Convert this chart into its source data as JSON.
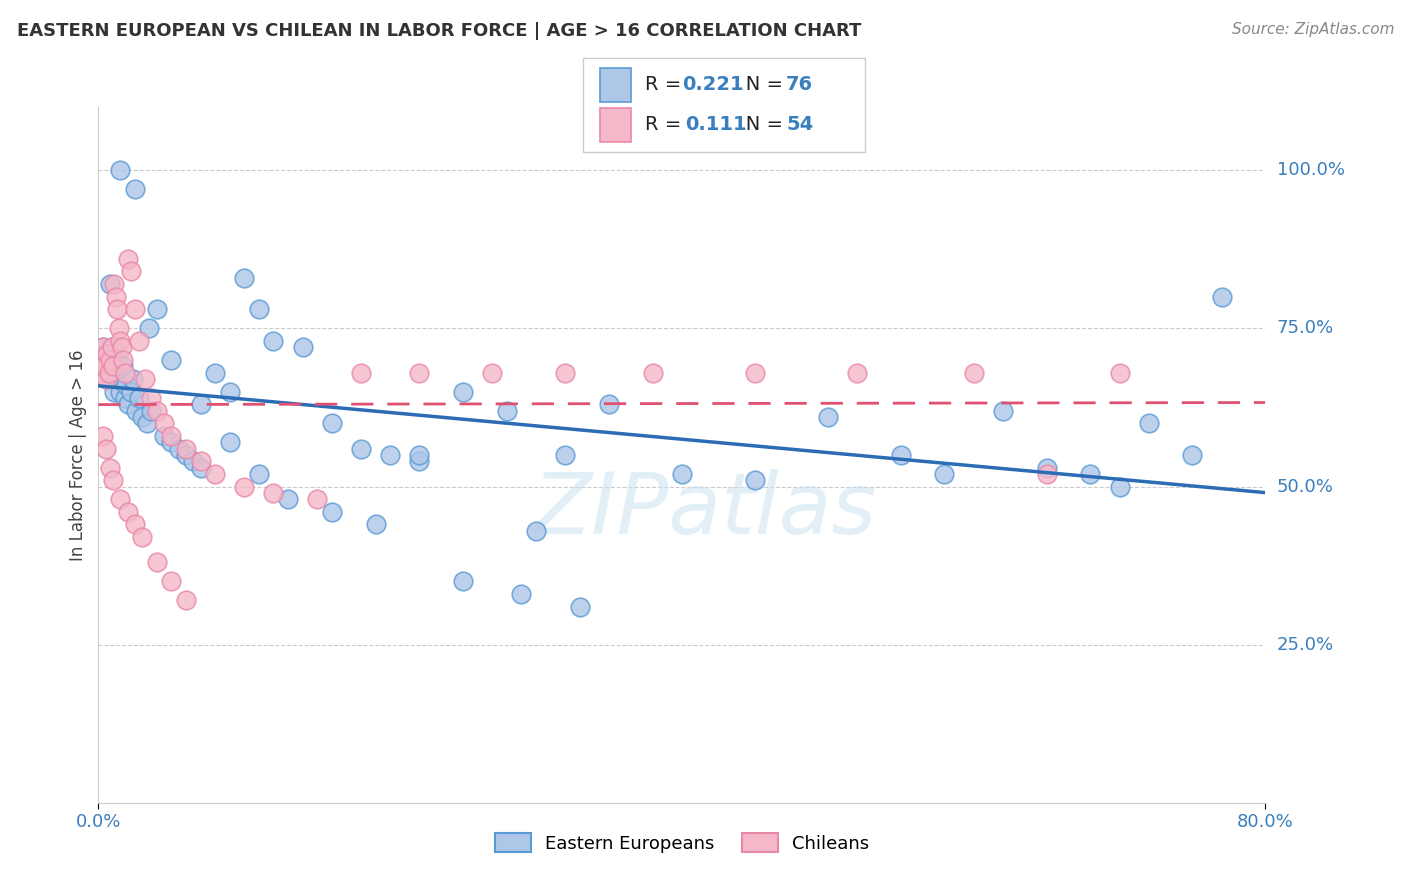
{
  "title": "EASTERN EUROPEAN VS CHILEAN IN LABOR FORCE | AGE > 16 CORRELATION CHART",
  "source": "Source: ZipAtlas.com",
  "ylabel": "In Labor Force | Age > 16",
  "xlim": [
    0.0,
    0.8
  ],
  "ylim": [
    0.0,
    1.1
  ],
  "blue_color": "#aec6e8",
  "blue_edge_color": "#5b9bd5",
  "pink_color": "#f4b8c8",
  "pink_edge_color": "#e888a8",
  "blue_line_color": "#2b6cb5",
  "pink_line_color": "#e05070",
  "tick_color": "#3a7fbd",
  "blue_r": "0.221",
  "blue_n": "76",
  "pink_r": "0.111",
  "pink_n": "54",
  "watermark": "ZIPatlas",
  "blue_legend_label": "Eastern Europeans",
  "pink_legend_label": "Chileans",
  "grid_color": "#cccccc",
  "blue_points_x": [
    0.001,
    0.002,
    0.003,
    0.004,
    0.005,
    0.006,
    0.007,
    0.008,
    0.009,
    0.01,
    0.011,
    0.012,
    0.013,
    0.014,
    0.015,
    0.016,
    0.017,
    0.018,
    0.019,
    0.02,
    0.022,
    0.024,
    0.026,
    0.028,
    0.03,
    0.033,
    0.036,
    0.04,
    0.045,
    0.05,
    0.055,
    0.06,
    0.065,
    0.07,
    0.08,
    0.09,
    0.1,
    0.11,
    0.12,
    0.14,
    0.16,
    0.18,
    0.2,
    0.22,
    0.25,
    0.28,
    0.32,
    0.35,
    0.4,
    0.45,
    0.5,
    0.55,
    0.58,
    0.62,
    0.65,
    0.68,
    0.7,
    0.72,
    0.75,
    0.77,
    0.3,
    0.035,
    0.05,
    0.07,
    0.09,
    0.11,
    0.13,
    0.16,
    0.19,
    0.22,
    0.25,
    0.29,
    0.33,
    0.025,
    0.015,
    0.008
  ],
  "blue_points_y": [
    0.68,
    0.7,
    0.72,
    0.69,
    0.67,
    0.71,
    0.68,
    0.7,
    0.72,
    0.69,
    0.65,
    0.68,
    0.7,
    0.67,
    0.65,
    0.67,
    0.69,
    0.64,
    0.66,
    0.63,
    0.65,
    0.67,
    0.62,
    0.64,
    0.61,
    0.6,
    0.62,
    0.78,
    0.58,
    0.57,
    0.56,
    0.55,
    0.54,
    0.53,
    0.68,
    0.65,
    0.83,
    0.78,
    0.73,
    0.72,
    0.6,
    0.56,
    0.55,
    0.54,
    0.65,
    0.62,
    0.55,
    0.63,
    0.52,
    0.51,
    0.61,
    0.55,
    0.52,
    0.62,
    0.53,
    0.52,
    0.5,
    0.6,
    0.55,
    0.8,
    0.43,
    0.75,
    0.7,
    0.63,
    0.57,
    0.52,
    0.48,
    0.46,
    0.44,
    0.55,
    0.35,
    0.33,
    0.31,
    0.97,
    1.0,
    0.82
  ],
  "pink_points_x": [
    0.001,
    0.002,
    0.003,
    0.004,
    0.005,
    0.006,
    0.007,
    0.008,
    0.009,
    0.01,
    0.011,
    0.012,
    0.013,
    0.014,
    0.015,
    0.016,
    0.017,
    0.018,
    0.02,
    0.022,
    0.025,
    0.028,
    0.032,
    0.036,
    0.04,
    0.045,
    0.05,
    0.06,
    0.07,
    0.08,
    0.1,
    0.12,
    0.15,
    0.18,
    0.22,
    0.27,
    0.32,
    0.38,
    0.45,
    0.52,
    0.6,
    0.65,
    0.7,
    0.003,
    0.005,
    0.008,
    0.01,
    0.015,
    0.02,
    0.025,
    0.03,
    0.04,
    0.05,
    0.06
  ],
  "pink_points_y": [
    0.68,
    0.7,
    0.72,
    0.69,
    0.67,
    0.71,
    0.68,
    0.7,
    0.72,
    0.69,
    0.82,
    0.8,
    0.78,
    0.75,
    0.73,
    0.72,
    0.7,
    0.68,
    0.86,
    0.84,
    0.78,
    0.73,
    0.67,
    0.64,
    0.62,
    0.6,
    0.58,
    0.56,
    0.54,
    0.52,
    0.5,
    0.49,
    0.48,
    0.68,
    0.68,
    0.68,
    0.68,
    0.68,
    0.68,
    0.68,
    0.68,
    0.52,
    0.68,
    0.58,
    0.56,
    0.53,
    0.51,
    0.48,
    0.46,
    0.44,
    0.42,
    0.38,
    0.35,
    0.32
  ]
}
